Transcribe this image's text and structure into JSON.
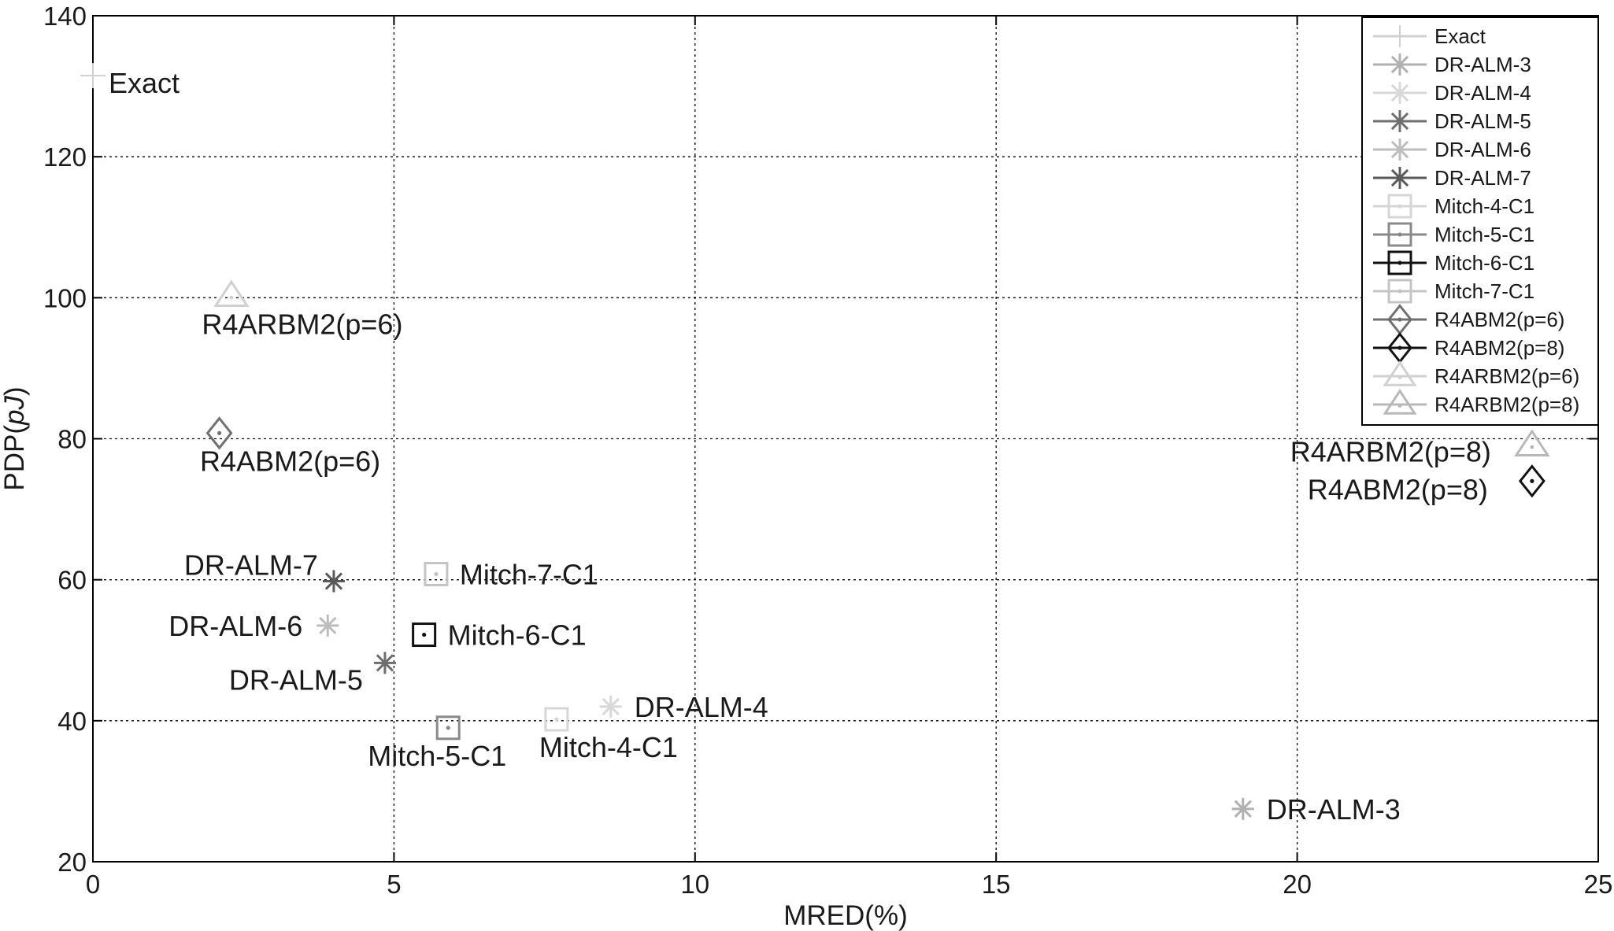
{
  "chart_data": {
    "type": "scatter",
    "xlabel": "MRED(%)",
    "ylabel_prefix": "PDP(",
    "ylabel_unit": "pJ",
    "ylabel_suffix": ")",
    "xlim": [
      0,
      25
    ],
    "ylim": [
      20,
      140
    ],
    "xticks": [
      0,
      5,
      10,
      15,
      20,
      25
    ],
    "yticks": [
      20,
      40,
      60,
      80,
      100,
      120,
      140
    ],
    "grid": true,
    "legend_position": "top-right",
    "series": [
      {
        "name": "Exact",
        "marker": "plus",
        "color": "#d0d0d0",
        "lw": 2,
        "x": 0.0,
        "y": 131.5,
        "label": "Exact",
        "label_side": "right"
      },
      {
        "name": "DR-ALM-3",
        "marker": "asterisk",
        "color": "#b0b0b0",
        "lw": 3,
        "x": 19.1,
        "y": 27.5,
        "label": "DR-ALM-3",
        "label_side": "right"
      },
      {
        "name": "DR-ALM-4",
        "marker": "asterisk",
        "color": "#d8d8d8",
        "lw": 3,
        "x": 8.6,
        "y": 42.0,
        "label": "DR-ALM-4",
        "label_side": "right"
      },
      {
        "name": "DR-ALM-5",
        "marker": "asterisk",
        "color": "#6e6e6e",
        "lw": 3,
        "x": 4.85,
        "y": 48.2,
        "label": "DR-ALM-5",
        "label_side": "left-below"
      },
      {
        "name": "DR-ALM-6",
        "marker": "asterisk",
        "color": "#bdbdbd",
        "lw": 3,
        "x": 3.9,
        "y": 53.5,
        "label": "DR-ALM-6",
        "label_side": "left"
      },
      {
        "name": "DR-ALM-7",
        "marker": "asterisk",
        "color": "#5a5a5a",
        "lw": 3,
        "x": 4.0,
        "y": 59.8,
        "label": "DR-ALM-7",
        "label_side": "left-above"
      },
      {
        "name": "Mitch-4-C1",
        "marker": "square",
        "color": "#d6d6d6",
        "lw": 3,
        "x": 7.7,
        "y": 40.2,
        "label": "Mitch-4-C1",
        "label_side": "below"
      },
      {
        "name": "Mitch-5-C1",
        "marker": "square",
        "color": "#8a8a8a",
        "lw": 3,
        "x": 5.9,
        "y": 39.0,
        "label": "Mitch-5-C1",
        "label_side": "below"
      },
      {
        "name": "Mitch-6-C1",
        "marker": "square",
        "color": "#111111",
        "lw": 3,
        "x": 5.5,
        "y": 52.2,
        "label": "Mitch-6-C1",
        "label_side": "right"
      },
      {
        "name": "Mitch-7-C1",
        "marker": "square",
        "color": "#c4c4c4",
        "lw": 3,
        "x": 5.7,
        "y": 60.8,
        "label": "Mitch-7-C1",
        "label_side": "right"
      },
      {
        "name": "R4ABM2(p=6)",
        "marker": "diamond",
        "color": "#707070",
        "lw": 3,
        "x": 2.1,
        "y": 80.8,
        "label": "R4ABM2(p=6)",
        "label_side": "below"
      },
      {
        "name": "R4ABM2(p=8)",
        "marker": "diamond",
        "color": "#111111",
        "lw": 3,
        "x": 23.9,
        "y": 74.0,
        "label": "R4ABM2(p=8)",
        "label_side": "left"
      },
      {
        "name": "R4ARBM2(p=6)",
        "marker": "triangle",
        "color": "#d0d0d0",
        "lw": 3,
        "x": 2.3,
        "y": 100.2,
        "label": "R4ARBM2(p=6)",
        "label_side": "below"
      },
      {
        "name": "R4ARBM2(p=8)",
        "marker": "triangle",
        "color": "#b8b8b8",
        "lw": 3,
        "x": 23.9,
        "y": 79.0,
        "label": "R4ARBM2(p=8)",
        "label_side": "left"
      }
    ]
  }
}
